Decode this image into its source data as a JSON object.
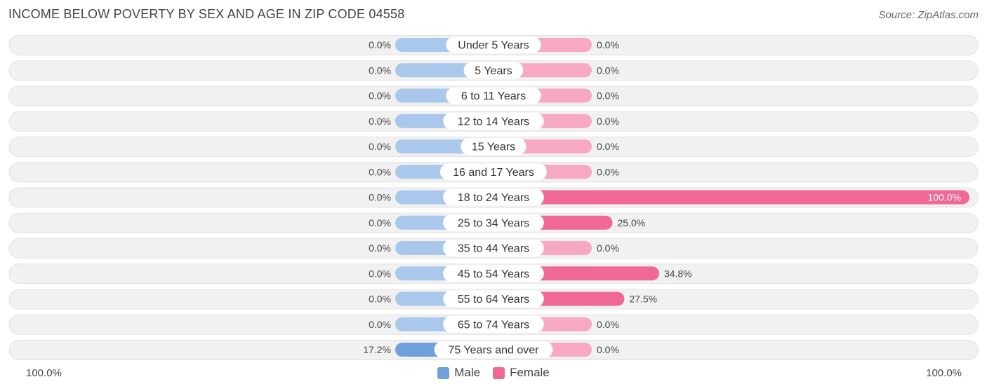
{
  "title": "INCOME BELOW POVERTY BY SEX AND AGE IN ZIP CODE 04558",
  "source": "Source: ZipAtlas.com",
  "axis": {
    "left_label": "100.0%",
    "right_label": "100.0%"
  },
  "legend": {
    "male_label": "Male",
    "female_label": "Female"
  },
  "colors": {
    "male": "#6fa0dc",
    "male_light": "#a9c8ec",
    "female": "#f06895",
    "female_light": "#f7a8c2",
    "row_bg": "#efefef"
  },
  "chart_data": {
    "type": "bar",
    "orientation": "horizontal-diverging",
    "categories": [
      "Under 5 Years",
      "5 Years",
      "6 to 11 Years",
      "12 to 14 Years",
      "15 Years",
      "16 and 17 Years",
      "18 to 24 Years",
      "25 to 34 Years",
      "35 to 44 Years",
      "45 to 54 Years",
      "55 to 64 Years",
      "65 to 74 Years",
      "75 Years and over"
    ],
    "series": [
      {
        "name": "Male",
        "values": [
          0,
          0,
          0,
          0,
          0,
          0,
          0,
          0,
          0,
          0,
          0,
          0,
          17.2
        ],
        "labels": [
          "0.0%",
          "0.0%",
          "0.0%",
          "0.0%",
          "0.0%",
          "0.0%",
          "0.0%",
          "0.0%",
          "0.0%",
          "0.0%",
          "0.0%",
          "0.0%",
          "17.2%"
        ]
      },
      {
        "name": "Female",
        "values": [
          0,
          0,
          0,
          0,
          0,
          0,
          100,
          25,
          0,
          34.8,
          27.5,
          0,
          0
        ],
        "labels": [
          "0.0%",
          "0.0%",
          "0.0%",
          "0.0%",
          "0.0%",
          "0.0%",
          "100.0%",
          "25.0%",
          "0.0%",
          "34.8%",
          "27.5%",
          "0.0%",
          "0.0%"
        ]
      }
    ],
    "xlim": [
      -100,
      100
    ]
  }
}
